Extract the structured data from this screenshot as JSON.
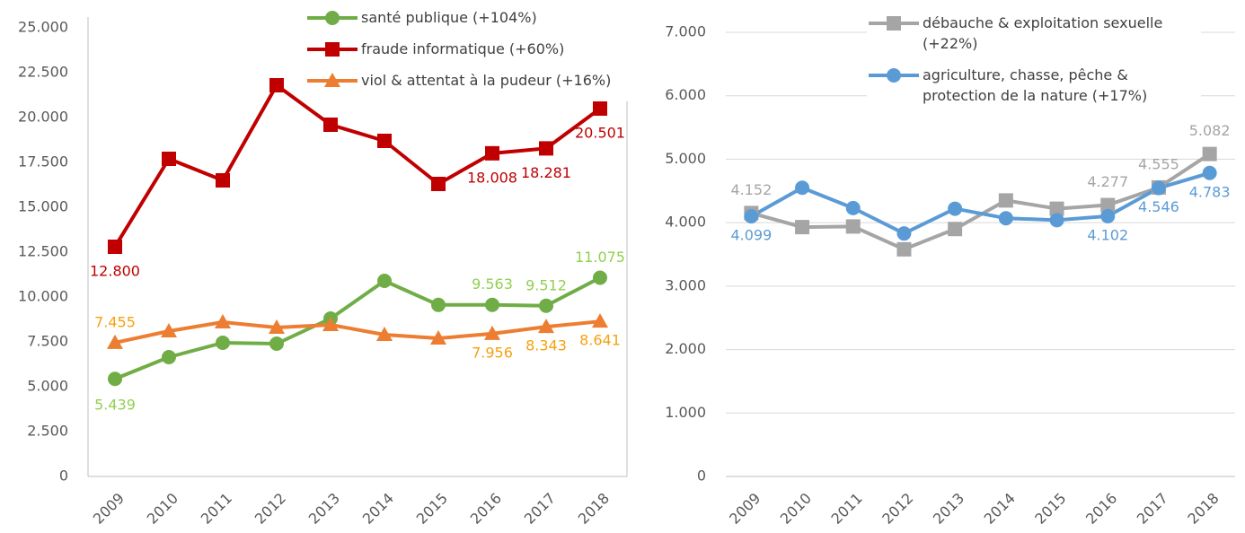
{
  "chart_data": [
    {
      "type": "line",
      "categories": [
        "2009",
        "2010",
        "2011",
        "2012",
        "2013",
        "2014",
        "2015",
        "2016",
        "2017",
        "2018"
      ],
      "ylim": [
        0,
        25000
      ],
      "yticks": [
        0,
        {
          "value": 2500,
          "label": "2.500"
        },
        {
          "value": 5000,
          "label": "5.000"
        },
        {
          "value": 7500,
          "label": "7.500"
        },
        {
          "value": 10000,
          "label": "10.000"
        },
        {
          "value": 12500,
          "label": "12.500"
        },
        {
          "value": 15000,
          "label": "15.000"
        },
        {
          "value": 17500,
          "label": "17.500"
        },
        {
          "value": 20000,
          "label": "20.000"
        },
        {
          "value": 22500,
          "label": "22.500"
        },
        {
          "value": 25000,
          "label": "25.000"
        }
      ],
      "grid": false,
      "series": [
        {
          "name": "santé publique (+104%)",
          "color": "#70ad47",
          "label_color": "#92d050",
          "marker": "circle",
          "values": [
            5439,
            6650,
            7450,
            7400,
            8800,
            10900,
            9560,
            9563,
            9512,
            11075
          ],
          "value_labels": [
            "5.439",
            null,
            null,
            null,
            null,
            null,
            null,
            "9.563",
            "9.512",
            "11.075"
          ]
        },
        {
          "name": "fraude informatique (+60%)",
          "color": "#c00000",
          "label_color": "#c00000",
          "marker": "square",
          "values": [
            12800,
            17700,
            16500,
            21800,
            19600,
            18700,
            16300,
            18008,
            18281,
            20501
          ],
          "value_labels": [
            "12.800",
            null,
            null,
            null,
            null,
            null,
            null,
            "18.008",
            "18.281",
            "20.501"
          ]
        },
        {
          "name": "viol & attentat à la pudeur (+16%)",
          "color": "#ed7d31",
          "label_color": "#f5a10f",
          "marker": "triangle",
          "values": [
            7455,
            8100,
            8600,
            8300,
            8450,
            7900,
            7700,
            7956,
            8343,
            8641
          ],
          "value_labels": [
            "7.455",
            null,
            null,
            null,
            null,
            null,
            null,
            "7.956",
            "8.343",
            "8.641"
          ]
        }
      ]
    },
    {
      "type": "line",
      "categories": [
        "2009",
        "2010",
        "2011",
        "2012",
        "2013",
        "2014",
        "2015",
        "2016",
        "2017",
        "2018"
      ],
      "ylim": [
        0,
        7000
      ],
      "yticks": [
        0,
        {
          "value": 1000,
          "label": "1.000"
        },
        {
          "value": 2000,
          "label": "2.000"
        },
        {
          "value": 3000,
          "label": "3.000"
        },
        {
          "value": 4000,
          "label": "4.000"
        },
        {
          "value": 5000,
          "label": "5.000"
        },
        {
          "value": 6000,
          "label": "6.000"
        },
        {
          "value": 7000,
          "label": "7.000"
        }
      ],
      "grid": true,
      "series": [
        {
          "name": "débauche & exploitation sexuelle (+22%)",
          "color": "#a5a5a5",
          "label_color": "#a5a5a5",
          "marker": "square",
          "values": [
            4152,
            3930,
            3940,
            3580,
            3900,
            4350,
            4220,
            4277,
            4555,
            5082
          ],
          "value_labels": [
            "4.152",
            null,
            null,
            null,
            null,
            null,
            null,
            "4.277",
            "4.555",
            "5.082"
          ]
        },
        {
          "name": "agriculture, chasse, pêche & protection de la nature (+17%)",
          "color": "#5b9bd5",
          "label_color": "#5b9bd5",
          "marker": "circle",
          "values": [
            4099,
            4550,
            4230,
            3830,
            4220,
            4070,
            4040,
            4102,
            4546,
            4783
          ],
          "value_labels": [
            "4.099",
            null,
            null,
            null,
            null,
            null,
            null,
            "4.102",
            "4.546",
            "4.783"
          ]
        }
      ]
    }
  ]
}
